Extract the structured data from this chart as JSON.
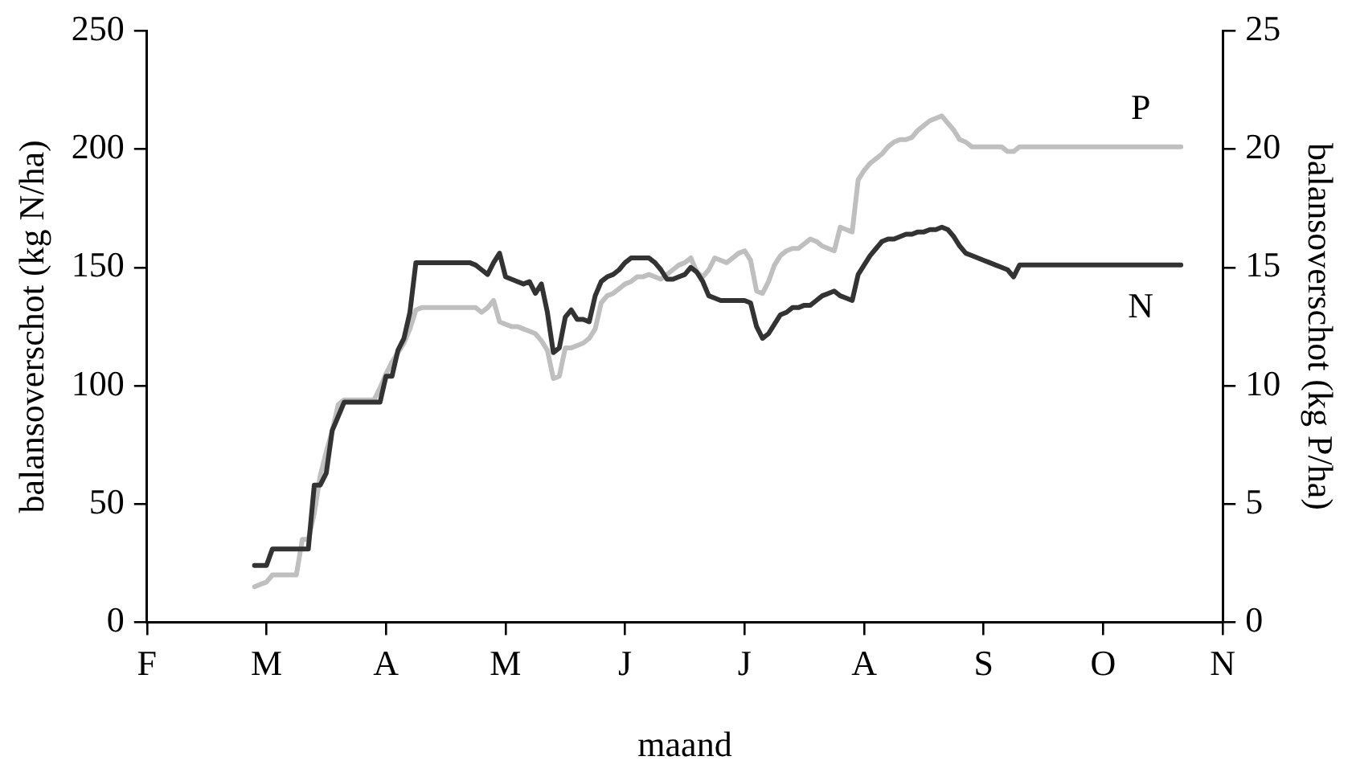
{
  "chart_data": {
    "type": "line",
    "xlabel": "maand",
    "ylabel": "balansoverschot (kg N/ha)",
    "y2label": "balansoverschot (kg P/ha)",
    "categories": [
      "F",
      null,
      null,
      null,
      null,
      null,
      null,
      null,
      null,
      null,
      null,
      null,
      null,
      null,
      null,
      null,
      null,
      null,
      null,
      null,
      "M",
      null,
      null,
      null,
      null,
      null,
      null,
      null,
      null,
      null,
      null,
      null,
      null,
      null,
      null,
      null,
      null,
      null,
      null,
      null,
      "A",
      null,
      null,
      null,
      null,
      null,
      null,
      null,
      null,
      null,
      null,
      null,
      null,
      null,
      null,
      null,
      null,
      null,
      null,
      null,
      "M",
      null,
      null,
      null,
      null,
      null,
      null,
      null,
      null,
      null,
      null,
      null,
      null,
      null,
      null,
      null,
      null,
      null,
      null,
      null,
      "J",
      null,
      null,
      null,
      null,
      null,
      null,
      null,
      null,
      null,
      null,
      null,
      null,
      null,
      null,
      null,
      null,
      null,
      null,
      null,
      "J",
      null,
      null,
      null,
      null,
      null,
      null,
      null,
      null,
      null,
      null,
      null,
      null,
      null,
      null,
      null,
      null,
      null,
      null,
      null,
      "A",
      null,
      null,
      null,
      null,
      null,
      null,
      null,
      null,
      null,
      null,
      null,
      null,
      null,
      null,
      null,
      null,
      null,
      null,
      null,
      "S",
      null,
      null,
      null,
      null,
      null,
      null,
      null,
      null,
      null,
      null,
      null,
      null,
      null,
      null,
      null,
      null,
      null,
      null,
      null,
      "O",
      null,
      null,
      null,
      null,
      null,
      null,
      null,
      null,
      null,
      null,
      null,
      null,
      null,
      null,
      null,
      null,
      null,
      null,
      null,
      "N"
    ],
    "ylim": [
      0,
      250
    ],
    "yticks": [
      0,
      50,
      100,
      150,
      200,
      250
    ],
    "y2lim": [
      0,
      25
    ],
    "y2ticks": [
      0,
      5,
      10,
      15,
      20,
      25
    ],
    "grid": false,
    "legend": false,
    "marker": "none",
    "line_style": "solid",
    "series": [
      {
        "name": "N",
        "color": "#333333",
        "values": [
          null,
          null,
          null,
          null,
          null,
          null,
          null,
          null,
          null,
          null,
          null,
          null,
          null,
          null,
          null,
          null,
          null,
          null,
          24,
          24,
          24,
          31,
          31,
          31,
          31,
          31,
          31,
          31,
          58,
          58,
          63,
          81,
          87,
          93,
          93,
          93,
          93,
          93,
          93,
          93,
          104,
          104,
          115,
          120,
          131,
          152,
          152,
          152,
          152,
          152,
          152,
          152,
          152,
          152,
          152,
          151,
          149,
          147,
          152,
          156,
          146,
          145,
          144,
          143,
          144,
          139,
          143,
          131,
          114,
          116,
          129,
          132,
          128,
          128,
          127,
          138,
          144,
          146,
          147,
          149,
          152,
          154,
          154,
          154,
          154,
          152,
          149,
          145,
          145,
          146,
          147,
          150,
          148,
          144,
          138,
          137,
          136,
          136,
          136,
          136,
          136,
          135,
          125,
          120,
          122,
          126,
          130,
          131,
          133,
          133,
          134,
          134,
          136,
          138,
          139,
          140,
          138,
          137,
          136,
          147,
          151,
          155,
          158,
          161,
          162,
          162,
          163,
          164,
          164,
          165,
          165,
          166,
          166,
          167,
          166,
          163,
          159,
          156,
          155,
          154,
          153,
          152,
          151,
          150,
          149,
          146,
          151,
          151,
          151,
          151,
          151,
          151,
          151,
          151,
          151,
          151,
          151,
          151,
          151,
          151,
          151,
          151,
          151,
          151,
          151,
          151,
          151,
          151,
          151,
          151,
          151,
          151,
          151,
          151,
          null,
          null,
          null,
          null,
          null,
          null,
          null
        ]
      },
      {
        "name": "P",
        "color": "#bfbfbf",
        "axis": "y2",
        "values": [
          null,
          null,
          null,
          null,
          null,
          null,
          null,
          null,
          null,
          null,
          null,
          null,
          null,
          null,
          null,
          null,
          null,
          null,
          1.5,
          1.6,
          1.7,
          2.0,
          2.0,
          2.0,
          2.0,
          2.0,
          3.5,
          3.5,
          4.6,
          6.2,
          7.2,
          8.1,
          9.2,
          9.4,
          9.4,
          9.4,
          9.4,
          9.4,
          9.4,
          9.9,
          10.5,
          11.0,
          11.4,
          11.8,
          12.4,
          13.2,
          13.3,
          13.3,
          13.3,
          13.3,
          13.3,
          13.3,
          13.3,
          13.3,
          13.3,
          13.3,
          13.1,
          13.3,
          13.6,
          12.7,
          12.6,
          12.5,
          12.5,
          12.4,
          12.3,
          12.2,
          11.9,
          11.5,
          10.3,
          10.4,
          11.6,
          11.6,
          11.7,
          11.8,
          12.0,
          12.4,
          13.5,
          13.8,
          13.9,
          14.1,
          14.3,
          14.4,
          14.6,
          14.6,
          14.7,
          14.6,
          14.5,
          14.7,
          14.9,
          15.1,
          15.2,
          15.4,
          14.8,
          14.6,
          14.9,
          15.4,
          15.3,
          15.2,
          15.4,
          15.6,
          15.7,
          15.3,
          14.0,
          13.9,
          14.4,
          15.1,
          15.5,
          15.7,
          15.8,
          15.8,
          16.0,
          16.2,
          16.1,
          15.9,
          15.8,
          15.7,
          16.7,
          16.6,
          16.5,
          18.7,
          19.1,
          19.4,
          19.6,
          19.8,
          20.1,
          20.3,
          20.4,
          20.4,
          20.5,
          20.8,
          21.0,
          21.2,
          21.3,
          21.4,
          21.1,
          20.8,
          20.4,
          20.3,
          20.1,
          20.1,
          20.1,
          20.1,
          20.1,
          20.1,
          19.9,
          19.9,
          20.1,
          20.1,
          20.1,
          20.1,
          20.1,
          20.1,
          20.1,
          20.1,
          20.1,
          20.1,
          20.1,
          20.1,
          20.1,
          20.1,
          20.1,
          20.1,
          20.1,
          20.1,
          20.1,
          20.1,
          20.1,
          20.1,
          20.1,
          20.1,
          20.1,
          20.1,
          20.1,
          20.1,
          null,
          null,
          null,
          null,
          null,
          null,
          null
        ]
      }
    ]
  }
}
